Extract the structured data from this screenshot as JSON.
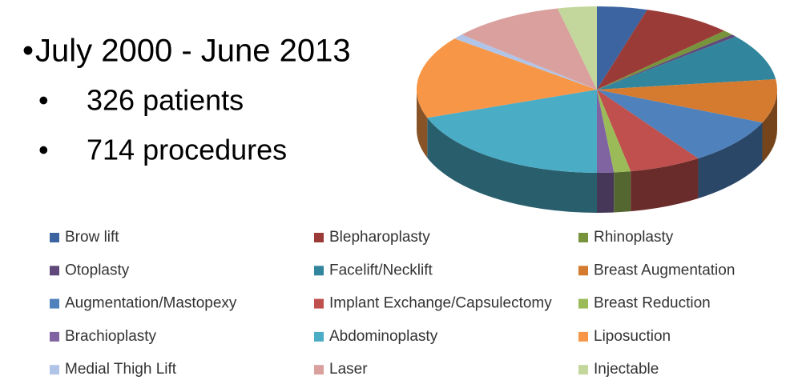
{
  "slide": {
    "heading": "July 2000 - June 2013",
    "bullets": [
      "326 patients",
      "714 procedures"
    ]
  },
  "chart_data": {
    "type": "pie",
    "categories": [
      "Brow lift",
      "Blepharoplasty",
      "Rhinoplasty",
      "Otoplasty",
      "Facelift/Necklift",
      "Breast Augmentation",
      "Augmentation/Mastopexy",
      "Implant Exchange/Capsulectomy",
      "Breast Reduction",
      "Brachioplasty",
      "Abdominoplasty",
      "Liposuction",
      "Medial Thigh Lift",
      "Laser",
      "Injectable"
    ],
    "values": [
      4.5,
      8,
      1,
      0.5,
      9,
      8.5,
      9,
      6.5,
      1.5,
      1.5,
      19.5,
      16,
      1,
      10,
      3.5
    ],
    "colors": [
      "#3c64a0",
      "#9b3b38",
      "#77933c",
      "#5f497a",
      "#31859c",
      "#d47b30",
      "#4f81bd",
      "#c0504d",
      "#9bbb59",
      "#8064a2",
      "#4bacc6",
      "#f79646",
      "#b0c4e8",
      "#d9a09e",
      "#c3d69b"
    ]
  }
}
